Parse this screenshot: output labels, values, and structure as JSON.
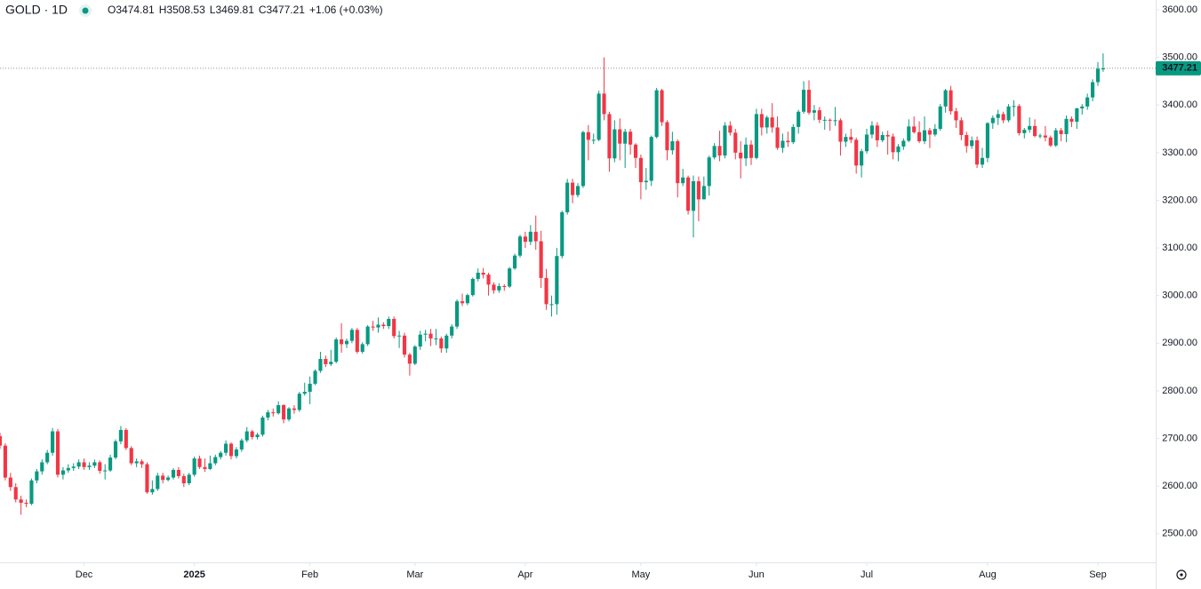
{
  "chart_data": {
    "type": "candlestick",
    "symbol": "GOLD · 1D",
    "ohlc_labels": [
      "O",
      "H",
      "L",
      "C"
    ],
    "change": "+1.06 (+0.03%)",
    "up_color": "#089981",
    "down_color": "#f23645",
    "xlim": [
      0,
      220
    ],
    "xticks": [
      {
        "value": 16,
        "label": "Dec"
      },
      {
        "value": 37,
        "label": "2025"
      },
      {
        "value": 59,
        "label": "Feb"
      },
      {
        "value": 79,
        "label": "Mar"
      },
      {
        "value": 100,
        "label": "Apr"
      },
      {
        "value": 122,
        "label": "May"
      },
      {
        "value": 144,
        "label": "Jun"
      },
      {
        "value": 165,
        "label": "Jul"
      },
      {
        "value": 188,
        "label": "Aug"
      },
      {
        "value": 209,
        "label": "Sep"
      }
    ],
    "ylim": [
      2440,
      3620.5
    ],
    "yticks": [
      {
        "value": 2500,
        "label": "2500.00"
      },
      {
        "value": 2600,
        "label": "2600.00"
      },
      {
        "value": 2700,
        "label": "2700.00"
      },
      {
        "value": 2800,
        "label": "2800.00"
      },
      {
        "value": 2900,
        "label": "2900.00"
      },
      {
        "value": 3000,
        "label": "3000.00"
      },
      {
        "value": 3100,
        "label": "3100.00"
      },
      {
        "value": 3200,
        "label": "3200.00"
      },
      {
        "value": 3300,
        "label": "3300.00"
      },
      {
        "value": 3400,
        "label": "3400.00"
      },
      {
        "value": 3500,
        "label": "3500.00"
      },
      {
        "value": 3600,
        "label": "3600.00"
      }
    ],
    "ohlc": [
      [
        2705,
        2712,
        2678,
        2685
      ],
      [
        2685,
        2690,
        2612,
        2618
      ],
      [
        2618,
        2628,
        2590,
        2598
      ],
      [
        2598,
        2606,
        2566,
        2572
      ],
      [
        2572,
        2580,
        2540,
        2565
      ],
      [
        2565,
        2572,
        2556,
        2563
      ],
      [
        2563,
        2616,
        2560,
        2612
      ],
      [
        2612,
        2636,
        2606,
        2631
      ],
      [
        2631,
        2656,
        2624,
        2650
      ],
      [
        2650,
        2676,
        2646,
        2670
      ],
      [
        2670,
        2722,
        2664,
        2715
      ],
      [
        2715,
        2720,
        2618,
        2624
      ],
      [
        2624,
        2640,
        2614,
        2633
      ],
      [
        2633,
        2646,
        2628,
        2638
      ],
      [
        2638,
        2648,
        2632,
        2641
      ],
      [
        2641,
        2656,
        2636,
        2650
      ],
      [
        2650,
        2658,
        2634,
        2640
      ],
      [
        2640,
        2650,
        2634,
        2643
      ],
      [
        2643,
        2656,
        2638,
        2650
      ],
      [
        2650,
        2654,
        2626,
        2632
      ],
      [
        2632,
        2646,
        2614,
        2633
      ],
      [
        2633,
        2666,
        2630,
        2660
      ],
      [
        2660,
        2698,
        2656,
        2694
      ],
      [
        2694,
        2726,
        2688,
        2718
      ],
      [
        2718,
        2722,
        2676,
        2680
      ],
      [
        2680,
        2684,
        2644,
        2648
      ],
      [
        2648,
        2658,
        2640,
        2652
      ],
      [
        2652,
        2656,
        2638,
        2646
      ],
      [
        2646,
        2650,
        2584,
        2587
      ],
      [
        2587,
        2612,
        2582,
        2594
      ],
      [
        2594,
        2628,
        2590,
        2622
      ],
      [
        2622,
        2628,
        2606,
        2613
      ],
      [
        2613,
        2622,
        2610,
        2618
      ],
      [
        2618,
        2638,
        2614,
        2634
      ],
      [
        2634,
        2640,
        2616,
        2621
      ],
      [
        2621,
        2626,
        2598,
        2606
      ],
      [
        2606,
        2628,
        2602,
        2624
      ],
      [
        2624,
        2662,
        2620,
        2658
      ],
      [
        2658,
        2664,
        2636,
        2640
      ],
      [
        2640,
        2658,
        2630,
        2636
      ],
      [
        2636,
        2664,
        2634,
        2648
      ],
      [
        2648,
        2666,
        2644,
        2661
      ],
      [
        2661,
        2674,
        2656,
        2670
      ],
      [
        2670,
        2696,
        2664,
        2689
      ],
      [
        2689,
        2692,
        2656,
        2663
      ],
      [
        2663,
        2682,
        2658,
        2677
      ],
      [
        2677,
        2700,
        2672,
        2696
      ],
      [
        2696,
        2724,
        2692,
        2715
      ],
      [
        2715,
        2718,
        2698,
        2703
      ],
      [
        2703,
        2712,
        2698,
        2708
      ],
      [
        2708,
        2748,
        2704,
        2744
      ],
      [
        2744,
        2760,
        2738,
        2755
      ],
      [
        2755,
        2763,
        2746,
        2753
      ],
      [
        2753,
        2778,
        2750,
        2770
      ],
      [
        2770,
        2772,
        2732,
        2740
      ],
      [
        2740,
        2766,
        2736,
        2763
      ],
      [
        2763,
        2770,
        2752,
        2760
      ],
      [
        2760,
        2798,
        2756,
        2794
      ],
      [
        2794,
        2817,
        2790,
        2798
      ],
      [
        2798,
        2830,
        2772,
        2815
      ],
      [
        2815,
        2845,
        2812,
        2842
      ],
      [
        2842,
        2882,
        2838,
        2867
      ],
      [
        2867,
        2874,
        2850,
        2856
      ],
      [
        2856,
        2886,
        2852,
        2861
      ],
      [
        2861,
        2912,
        2858,
        2908
      ],
      [
        2908,
        2942,
        2880,
        2898
      ],
      [
        2898,
        2910,
        2890,
        2905
      ],
      [
        2905,
        2932,
        2900,
        2928
      ],
      [
        2928,
        2932,
        2878,
        2882
      ],
      [
        2882,
        2902,
        2878,
        2898
      ],
      [
        2898,
        2938,
        2894,
        2935
      ],
      [
        2935,
        2947,
        2926,
        2933
      ],
      [
        2933,
        2954,
        2922,
        2939
      ],
      [
        2939,
        2944,
        2930,
        2936
      ],
      [
        2936,
        2956,
        2930,
        2951
      ],
      [
        2951,
        2956,
        2910,
        2915
      ],
      [
        2915,
        2926,
        2890,
        2916
      ],
      [
        2916,
        2922,
        2870,
        2876
      ],
      [
        2876,
        2880,
        2832,
        2857
      ],
      [
        2857,
        2896,
        2854,
        2893
      ],
      [
        2893,
        2926,
        2886,
        2918
      ],
      [
        2918,
        2928,
        2904,
        2920
      ],
      [
        2920,
        2930,
        2894,
        2910
      ],
      [
        2910,
        2930,
        2896,
        2910
      ],
      [
        2910,
        2914,
        2880,
        2889
      ],
      [
        2889,
        2920,
        2880,
        2916
      ],
      [
        2916,
        2940,
        2910,
        2935
      ],
      [
        2935,
        2992,
        2930,
        2988
      ],
      [
        2988,
        3004,
        2978,
        2984
      ],
      [
        2984,
        3004,
        2980,
        3001
      ],
      [
        3001,
        3038,
        2998,
        3035
      ],
      [
        3035,
        3057,
        3030,
        3048
      ],
      [
        3048,
        3058,
        3036,
        3044
      ],
      [
        3044,
        3048,
        3000,
        3023
      ],
      [
        3023,
        3028,
        3004,
        3011
      ],
      [
        3011,
        3026,
        3006,
        3020
      ],
      [
        3020,
        3024,
        3010,
        3019
      ],
      [
        3019,
        3060,
        3016,
        3057
      ],
      [
        3057,
        3088,
        3054,
        3084
      ],
      [
        3084,
        3128,
        3080,
        3124
      ],
      [
        3124,
        3134,
        3100,
        3113
      ],
      [
        3113,
        3148,
        3106,
        3134
      ],
      [
        3134,
        3168,
        3096,
        3114
      ],
      [
        3114,
        3136,
        3016,
        3037
      ],
      [
        3037,
        3056,
        2970,
        2982
      ],
      [
        2982,
        3000,
        2956,
        2982
      ],
      [
        2982,
        3100,
        2960,
        3083
      ],
      [
        3083,
        3178,
        3078,
        3175
      ],
      [
        3175,
        3245,
        3170,
        3237
      ],
      [
        3237,
        3245,
        3194,
        3211
      ],
      [
        3211,
        3236,
        3206,
        3230
      ],
      [
        3230,
        3346,
        3226,
        3343
      ],
      [
        3343,
        3358,
        3284,
        3327
      ],
      [
        3327,
        3340,
        3318,
        3327
      ],
      [
        3327,
        3430,
        3324,
        3424
      ],
      [
        3424,
        3500,
        3368,
        3381
      ],
      [
        3381,
        3386,
        3260,
        3288
      ],
      [
        3288,
        3368,
        3280,
        3349
      ],
      [
        3349,
        3372,
        3284,
        3319
      ],
      [
        3319,
        3350,
        3268,
        3344
      ],
      [
        3344,
        3350,
        3296,
        3317
      ],
      [
        3317,
        3320,
        3268,
        3289
      ],
      [
        3289,
        3296,
        3202,
        3238
      ],
      [
        3238,
        3268,
        3222,
        3241
      ],
      [
        3241,
        3336,
        3230,
        3333
      ],
      [
        3333,
        3436,
        3330,
        3431
      ],
      [
        3431,
        3434,
        3356,
        3364
      ],
      [
        3364,
        3368,
        3284,
        3305
      ],
      [
        3305,
        3344,
        3296,
        3324
      ],
      [
        3324,
        3328,
        3206,
        3236
      ],
      [
        3236,
        3266,
        3230,
        3248
      ],
      [
        3248,
        3252,
        3170,
        3178
      ],
      [
        3178,
        3252,
        3122,
        3240
      ],
      [
        3240,
        3250,
        3156,
        3202
      ],
      [
        3202,
        3250,
        3206,
        3230
      ],
      [
        3230,
        3294,
        3210,
        3290
      ],
      [
        3290,
        3320,
        3286,
        3314
      ],
      [
        3314,
        3346,
        3282,
        3294
      ],
      [
        3294,
        3364,
        3288,
        3357
      ],
      [
        3357,
        3366,
        3336,
        3342
      ],
      [
        3342,
        3350,
        3286,
        3300
      ],
      [
        3300,
        3324,
        3246,
        3288
      ],
      [
        3288,
        3332,
        3272,
        3317
      ],
      [
        3317,
        3326,
        3274,
        3289
      ],
      [
        3289,
        3392,
        3286,
        3381
      ],
      [
        3381,
        3392,
        3336,
        3353
      ],
      [
        3353,
        3378,
        3340,
        3374
      ],
      [
        3374,
        3404,
        3342,
        3353
      ],
      [
        3353,
        3376,
        3306,
        3310
      ],
      [
        3310,
        3340,
        3300,
        3325
      ],
      [
        3325,
        3344,
        3312,
        3322
      ],
      [
        3322,
        3360,
        3318,
        3354
      ],
      [
        3354,
        3390,
        3340,
        3386
      ],
      [
        3386,
        3450,
        3382,
        3432
      ],
      [
        3432,
        3452,
        3380,
        3384
      ],
      [
        3384,
        3400,
        3368,
        3389
      ],
      [
        3389,
        3396,
        3362,
        3369
      ],
      [
        3369,
        3376,
        3348,
        3369
      ],
      [
        3369,
        3372,
        3346,
        3368
      ],
      [
        3368,
        3396,
        3356,
        3368
      ],
      [
        3368,
        3372,
        3294,
        3323
      ],
      [
        3323,
        3340,
        3312,
        3333
      ],
      [
        3333,
        3350,
        3320,
        3327
      ],
      [
        3327,
        3332,
        3256,
        3273
      ],
      [
        3273,
        3308,
        3248,
        3303
      ],
      [
        3303,
        3350,
        3298,
        3338
      ],
      [
        3338,
        3366,
        3330,
        3357
      ],
      [
        3357,
        3364,
        3312,
        3326
      ],
      [
        3326,
        3344,
        3322,
        3337
      ],
      [
        3337,
        3346,
        3296,
        3334
      ],
      [
        3334,
        3340,
        3286,
        3301
      ],
      [
        3301,
        3318,
        3282,
        3313
      ],
      [
        3313,
        3330,
        3306,
        3325
      ],
      [
        3325,
        3370,
        3322,
        3355
      ],
      [
        3355,
        3376,
        3340,
        3343
      ],
      [
        3343,
        3366,
        3320,
        3324
      ],
      [
        3324,
        3376,
        3318,
        3347
      ],
      [
        3347,
        3352,
        3310,
        3338
      ],
      [
        3338,
        3360,
        3334,
        3350
      ],
      [
        3350,
        3402,
        3346,
        3397
      ],
      [
        3397,
        3434,
        3384,
        3431
      ],
      [
        3431,
        3440,
        3380,
        3387
      ],
      [
        3387,
        3394,
        3352,
        3368
      ],
      [
        3368,
        3374,
        3326,
        3337
      ],
      [
        3337,
        3344,
        3300,
        3314
      ],
      [
        3314,
        3334,
        3308,
        3326
      ],
      [
        3326,
        3334,
        3268,
        3275
      ],
      [
        3275,
        3310,
        3268,
        3289
      ],
      [
        3289,
        3364,
        3280,
        3362
      ],
      [
        3362,
        3378,
        3350,
        3373
      ],
      [
        3373,
        3390,
        3358,
        3381
      ],
      [
        3381,
        3386,
        3362,
        3368
      ],
      [
        3368,
        3402,
        3364,
        3397
      ],
      [
        3397,
        3410,
        3376,
        3398
      ],
      [
        3398,
        3402,
        3336,
        3341
      ],
      [
        3341,
        3352,
        3330,
        3348
      ],
      [
        3348,
        3374,
        3342,
        3356
      ],
      [
        3356,
        3370,
        3332,
        3335
      ],
      [
        3335,
        3340,
        3330,
        3336
      ],
      [
        3336,
        3356,
        3324,
        3332
      ],
      [
        3332,
        3336,
        3312,
        3315
      ],
      [
        3315,
        3352,
        3312,
        3347
      ],
      [
        3347,
        3352,
        3324,
        3339
      ],
      [
        3339,
        3378,
        3322,
        3371
      ],
      [
        3371,
        3376,
        3354,
        3365
      ],
      [
        3365,
        3394,
        3350,
        3393
      ],
      [
        3393,
        3402,
        3380,
        3397
      ],
      [
        3397,
        3424,
        3390,
        3416
      ],
      [
        3416,
        3454,
        3408,
        3448
      ],
      [
        3448,
        3490,
        3440,
        3476.15
      ],
      [
        3474.81,
        3508.53,
        3469.81,
        3477.21
      ]
    ]
  }
}
